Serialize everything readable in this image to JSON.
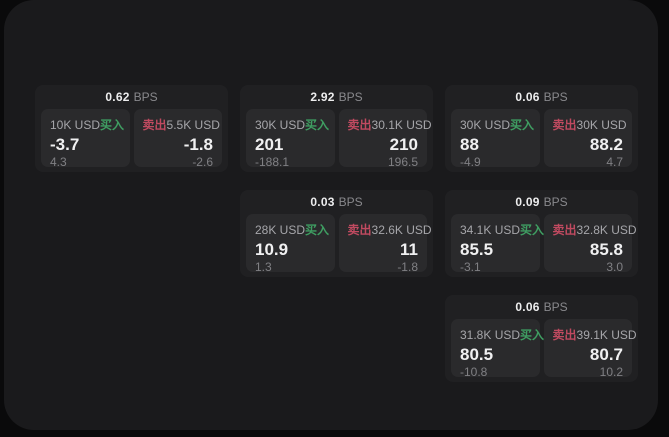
{
  "page": {
    "outer_bg": "#0a0a0b",
    "panel_bg": "#1a1a1c"
  },
  "colors": {
    "card_bg": "#202022",
    "cell_bg": "#2a2a2c",
    "buy_green": "#3f9e62",
    "sell_red": "#c04a60",
    "text_primary": "#f0f0f1",
    "text_secondary": "#a6a6aa",
    "text_muted": "#808084"
  },
  "labels": {
    "bps": "BPS",
    "buy": "买入",
    "sell": "卖出"
  },
  "cards": [
    {
      "grid": {
        "row": 1,
        "col": 1
      },
      "bps": "0.62",
      "buy": {
        "size": "10K USD",
        "price": "-3.7",
        "delta": "4.3"
      },
      "sell": {
        "size": "5.5K USD",
        "price": "-1.8",
        "delta": "-2.6"
      }
    },
    {
      "grid": {
        "row": 1,
        "col": 2
      },
      "bps": "2.92",
      "buy": {
        "size": "30K USD",
        "price": "201",
        "delta": "-188.1"
      },
      "sell": {
        "size": "30.1K USD",
        "price": "210",
        "delta": "196.5"
      }
    },
    {
      "grid": {
        "row": 1,
        "col": 3
      },
      "bps": "0.06",
      "buy": {
        "size": "30K USD",
        "price": "88",
        "delta": "-4.9"
      },
      "sell": {
        "size": "30K USD",
        "price": "88.2",
        "delta": "4.7"
      }
    },
    {
      "grid": {
        "row": 2,
        "col": 2
      },
      "bps": "0.03",
      "buy": {
        "size": "28K USD",
        "price": "10.9",
        "delta": "1.3"
      },
      "sell": {
        "size": "32.6K USD",
        "price": "11",
        "delta": "-1.8"
      }
    },
    {
      "grid": {
        "row": 2,
        "col": 3
      },
      "bps": "0.09",
      "buy": {
        "size": "34.1K USD",
        "price": "85.5",
        "delta": "-3.1"
      },
      "sell": {
        "size": "32.8K USD",
        "price": "85.8",
        "delta": "3.0"
      }
    },
    {
      "grid": {
        "row": 3,
        "col": 3
      },
      "bps": "0.06",
      "buy": {
        "size": "31.8K USD",
        "price": "80.5",
        "delta": "-10.8"
      },
      "sell": {
        "size": "39.1K USD",
        "price": "80.7",
        "delta": "10.2"
      }
    }
  ]
}
